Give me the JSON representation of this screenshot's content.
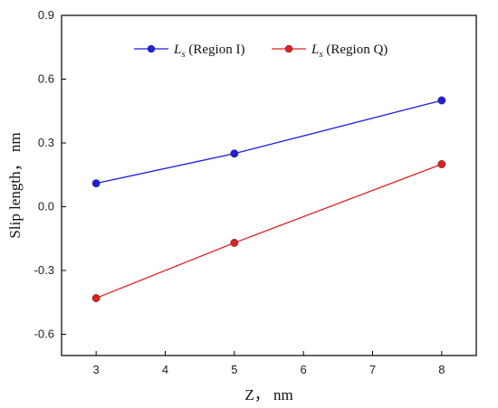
{
  "chart_data": {
    "type": "line",
    "title": "",
    "xlabel": "Z， nm",
    "ylabel": "Slip length， nm",
    "xlim": [
      2.5,
      8.5
    ],
    "ylim": [
      -0.7,
      0.9
    ],
    "xticks": [
      "3",
      "4",
      "5",
      "6",
      "7",
      "8"
    ],
    "yticks": [
      "-0.6",
      "-0.3",
      "0.0",
      "0.3",
      "0.6",
      "0.9"
    ],
    "grid": false,
    "legend_position": "top-center",
    "series": [
      {
        "name_symbol": "L",
        "name_subscript": "s",
        "name_suffix": " (Region I)",
        "color": "#1f1fe0",
        "x": [
          3,
          5,
          8
        ],
        "y": [
          0.11,
          0.25,
          0.5
        ]
      },
      {
        "name_symbol": "L",
        "name_subscript": "s",
        "name_suffix": " (Region Q)",
        "color": "#e01f1f",
        "x": [
          3,
          5,
          8
        ],
        "y": [
          -0.43,
          -0.17,
          0.2
        ]
      }
    ]
  }
}
